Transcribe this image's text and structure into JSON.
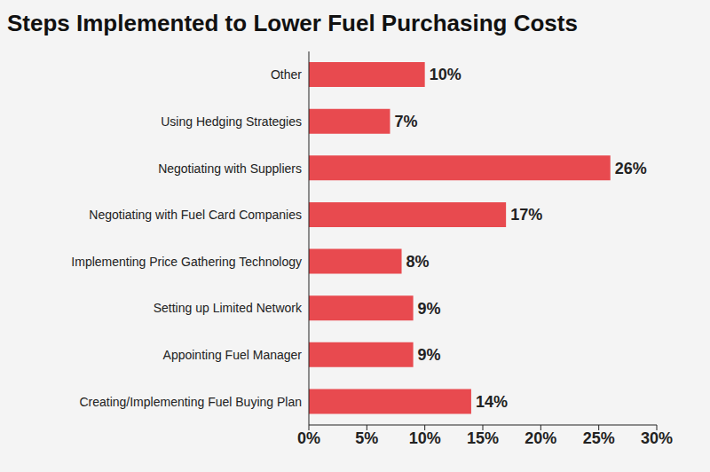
{
  "chart_data": {
    "type": "bar",
    "title": "Steps Implemented to Lower Fuel Purchasing Costs",
    "orientation": "horizontal",
    "categories": [
      "Other",
      "Using Hedging Strategies",
      "Negotiating with Suppliers",
      "Negotiating with Fuel Card Companies",
      "Implementing Price Gathering Technology",
      "Setting up Limited Network",
      "Appointing Fuel Manager",
      "Creating/Implementing Fuel Buying Plan"
    ],
    "values": [
      10,
      7,
      26,
      17,
      8,
      9,
      9,
      14
    ],
    "value_labels": [
      "10%",
      "7%",
      "26%",
      "17%",
      "8%",
      "9%",
      "9%",
      "14%"
    ],
    "data_labels": true,
    "color": "#e84a4f",
    "xlim": [
      0,
      30
    ],
    "xticks": [
      {
        "value": 0,
        "label": "0%"
      },
      {
        "value": 5,
        "label": "5%"
      },
      {
        "value": 10,
        "label": "10%"
      },
      {
        "value": 15,
        "label": "15%"
      },
      {
        "value": 20,
        "label": "20%"
      },
      {
        "value": 25,
        "label": "25%"
      },
      {
        "value": 30,
        "label": "30%"
      }
    ],
    "grid": false
  }
}
